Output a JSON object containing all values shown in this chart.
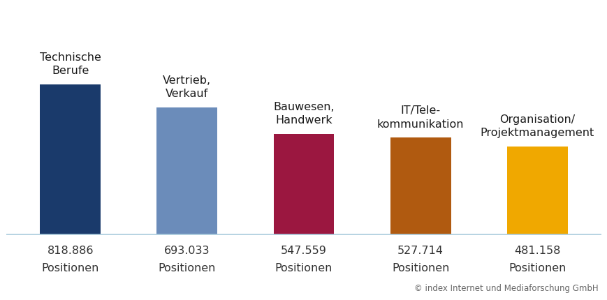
{
  "categories": [
    "Technische\nBerufe",
    "Vertrieb,\nVerkauf",
    "Bauwesen,\nHandwerk",
    "IT/Tele-\nkommunikation",
    "Organisation/\nProjektmanagement"
  ],
  "values": [
    818886,
    693033,
    547559,
    527714,
    481158
  ],
  "value_labels": [
    "818.886",
    "693.033",
    "547.559",
    "527.714",
    "481.158"
  ],
  "bar_colors": [
    "#1a3a6b",
    "#6b8cba",
    "#9b1740",
    "#b05a10",
    "#f0a800"
  ],
  "background_color": "#ffffff",
  "baseline_color": "#aaccdd",
  "copyright_text": "© index Internet und Mediaforschung GmbH",
  "label_suffix": "Positionen",
  "cat_fontsize": 11.5,
  "val_fontsize": 11.5,
  "copyright_fontsize": 8.5
}
